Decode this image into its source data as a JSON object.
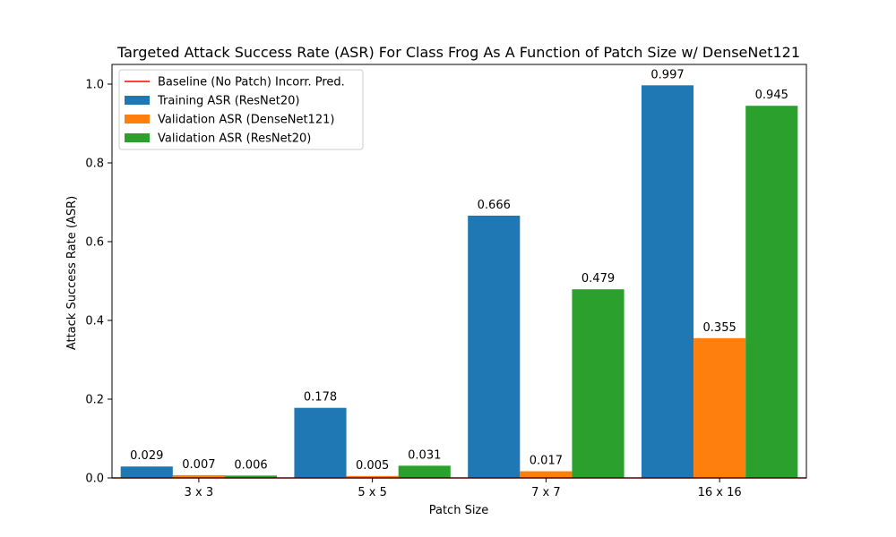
{
  "chart_data": {
    "type": "bar",
    "title": "Targeted Attack Success Rate (ASR) For Class Frog As A Function of Patch Size w/ DenseNet121",
    "xlabel": "Patch Size",
    "ylabel": "Attack Success Rate (ASR)",
    "categories": [
      "3 x 3",
      "5 x 5",
      "7 x 7",
      "16 x 16"
    ],
    "ylim": [
      0,
      1.05
    ],
    "yticks": [
      0.0,
      0.2,
      0.4,
      0.6,
      0.8,
      1.0
    ],
    "ytick_labels": [
      "0.0",
      "0.2",
      "0.4",
      "0.6",
      "0.8",
      "1.0"
    ],
    "grid": false,
    "legend_position": "top-left",
    "baseline": {
      "name": "Baseline (No Patch) Incorr. Pred.",
      "value": 0.0,
      "color": "#ff0000"
    },
    "series": [
      {
        "name": "Training ASR (ResNet20)",
        "color": "#1f77b4",
        "values": [
          0.029,
          0.178,
          0.666,
          0.997
        ],
        "labels": [
          "0.029",
          "0.178",
          "0.666",
          "0.997"
        ]
      },
      {
        "name": "Validation ASR (DenseNet121)",
        "color": "#ff7f0e",
        "values": [
          0.007,
          0.005,
          0.017,
          0.355
        ],
        "labels": [
          "0.007",
          "0.005",
          "0.017",
          "0.355"
        ]
      },
      {
        "name": "Validation ASR (ResNet20)",
        "color": "#2ca02c",
        "values": [
          0.006,
          0.031,
          0.479,
          0.945
        ],
        "labels": [
          "0.006",
          "0.031",
          "0.479",
          "0.945"
        ]
      }
    ]
  }
}
